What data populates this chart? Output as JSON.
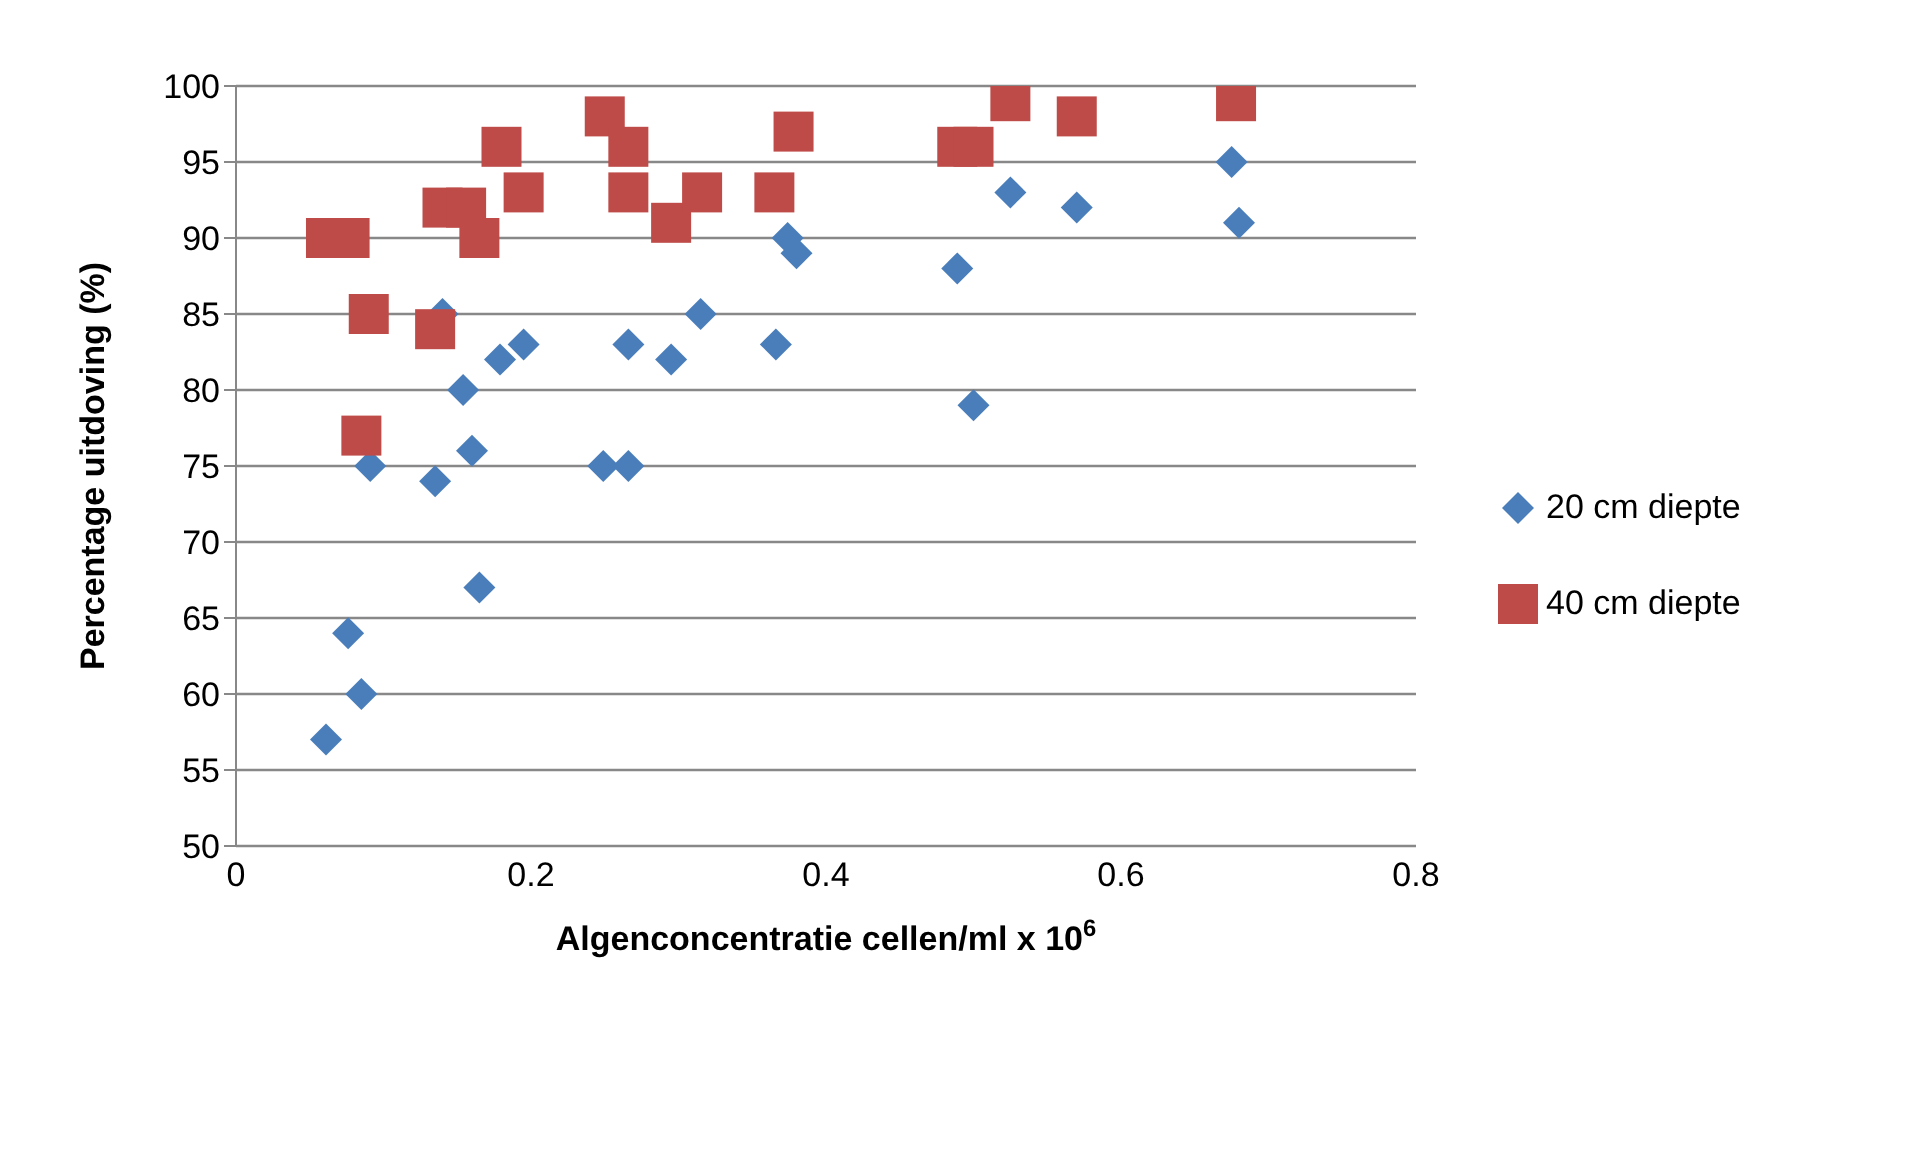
{
  "chart_data": {
    "type": "scatter",
    "xlabel": "Algenconcentratie cellen/ml x 10$^{6}$",
    "ylabel": "Percentage uitdoving (%)",
    "xlim": [
      0,
      0.8
    ],
    "xticks": [
      0,
      0.2,
      0.4,
      0.6,
      0.8
    ],
    "ylim": [
      50,
      100
    ],
    "yticks": [
      50,
      55,
      60,
      65,
      70,
      75,
      80,
      85,
      90,
      95,
      100
    ],
    "grid": "y",
    "legend": "right",
    "series": [
      {
        "name": "20 cm diepte",
        "color": "#4a7ebb",
        "marker": "diamond",
        "x": [
          0.061,
          0.076,
          0.085,
          0.091,
          0.135,
          0.14,
          0.154,
          0.16,
          0.165,
          0.179,
          0.195,
          0.249,
          0.266,
          0.266,
          0.295,
          0.315,
          0.366,
          0.374,
          0.38,
          0.489,
          0.5,
          0.525,
          0.57,
          0.675,
          0.68
        ],
        "values": [
          57,
          64,
          60,
          75,
          74,
          85,
          80,
          76,
          67,
          82,
          83,
          75,
          75,
          83,
          82,
          85,
          83,
          90,
          89,
          88,
          79,
          93,
          92,
          95,
          91
        ]
      },
      {
        "name": "40 cm diepte",
        "color": "#be4b48",
        "marker": "square",
        "x": [
          0.061,
          0.077,
          0.09,
          0.085,
          0.135,
          0.14,
          0.156,
          0.165,
          0.18,
          0.195,
          0.25,
          0.266,
          0.266,
          0.295,
          0.316,
          0.365,
          0.378,
          0.489,
          0.5,
          0.525,
          0.57,
          0.678
        ],
        "values": [
          90,
          90,
          85,
          77,
          84,
          92,
          92,
          90,
          96,
          93,
          98,
          96,
          93,
          91,
          93,
          93,
          97,
          96,
          96,
          99,
          98,
          99
        ]
      }
    ]
  }
}
